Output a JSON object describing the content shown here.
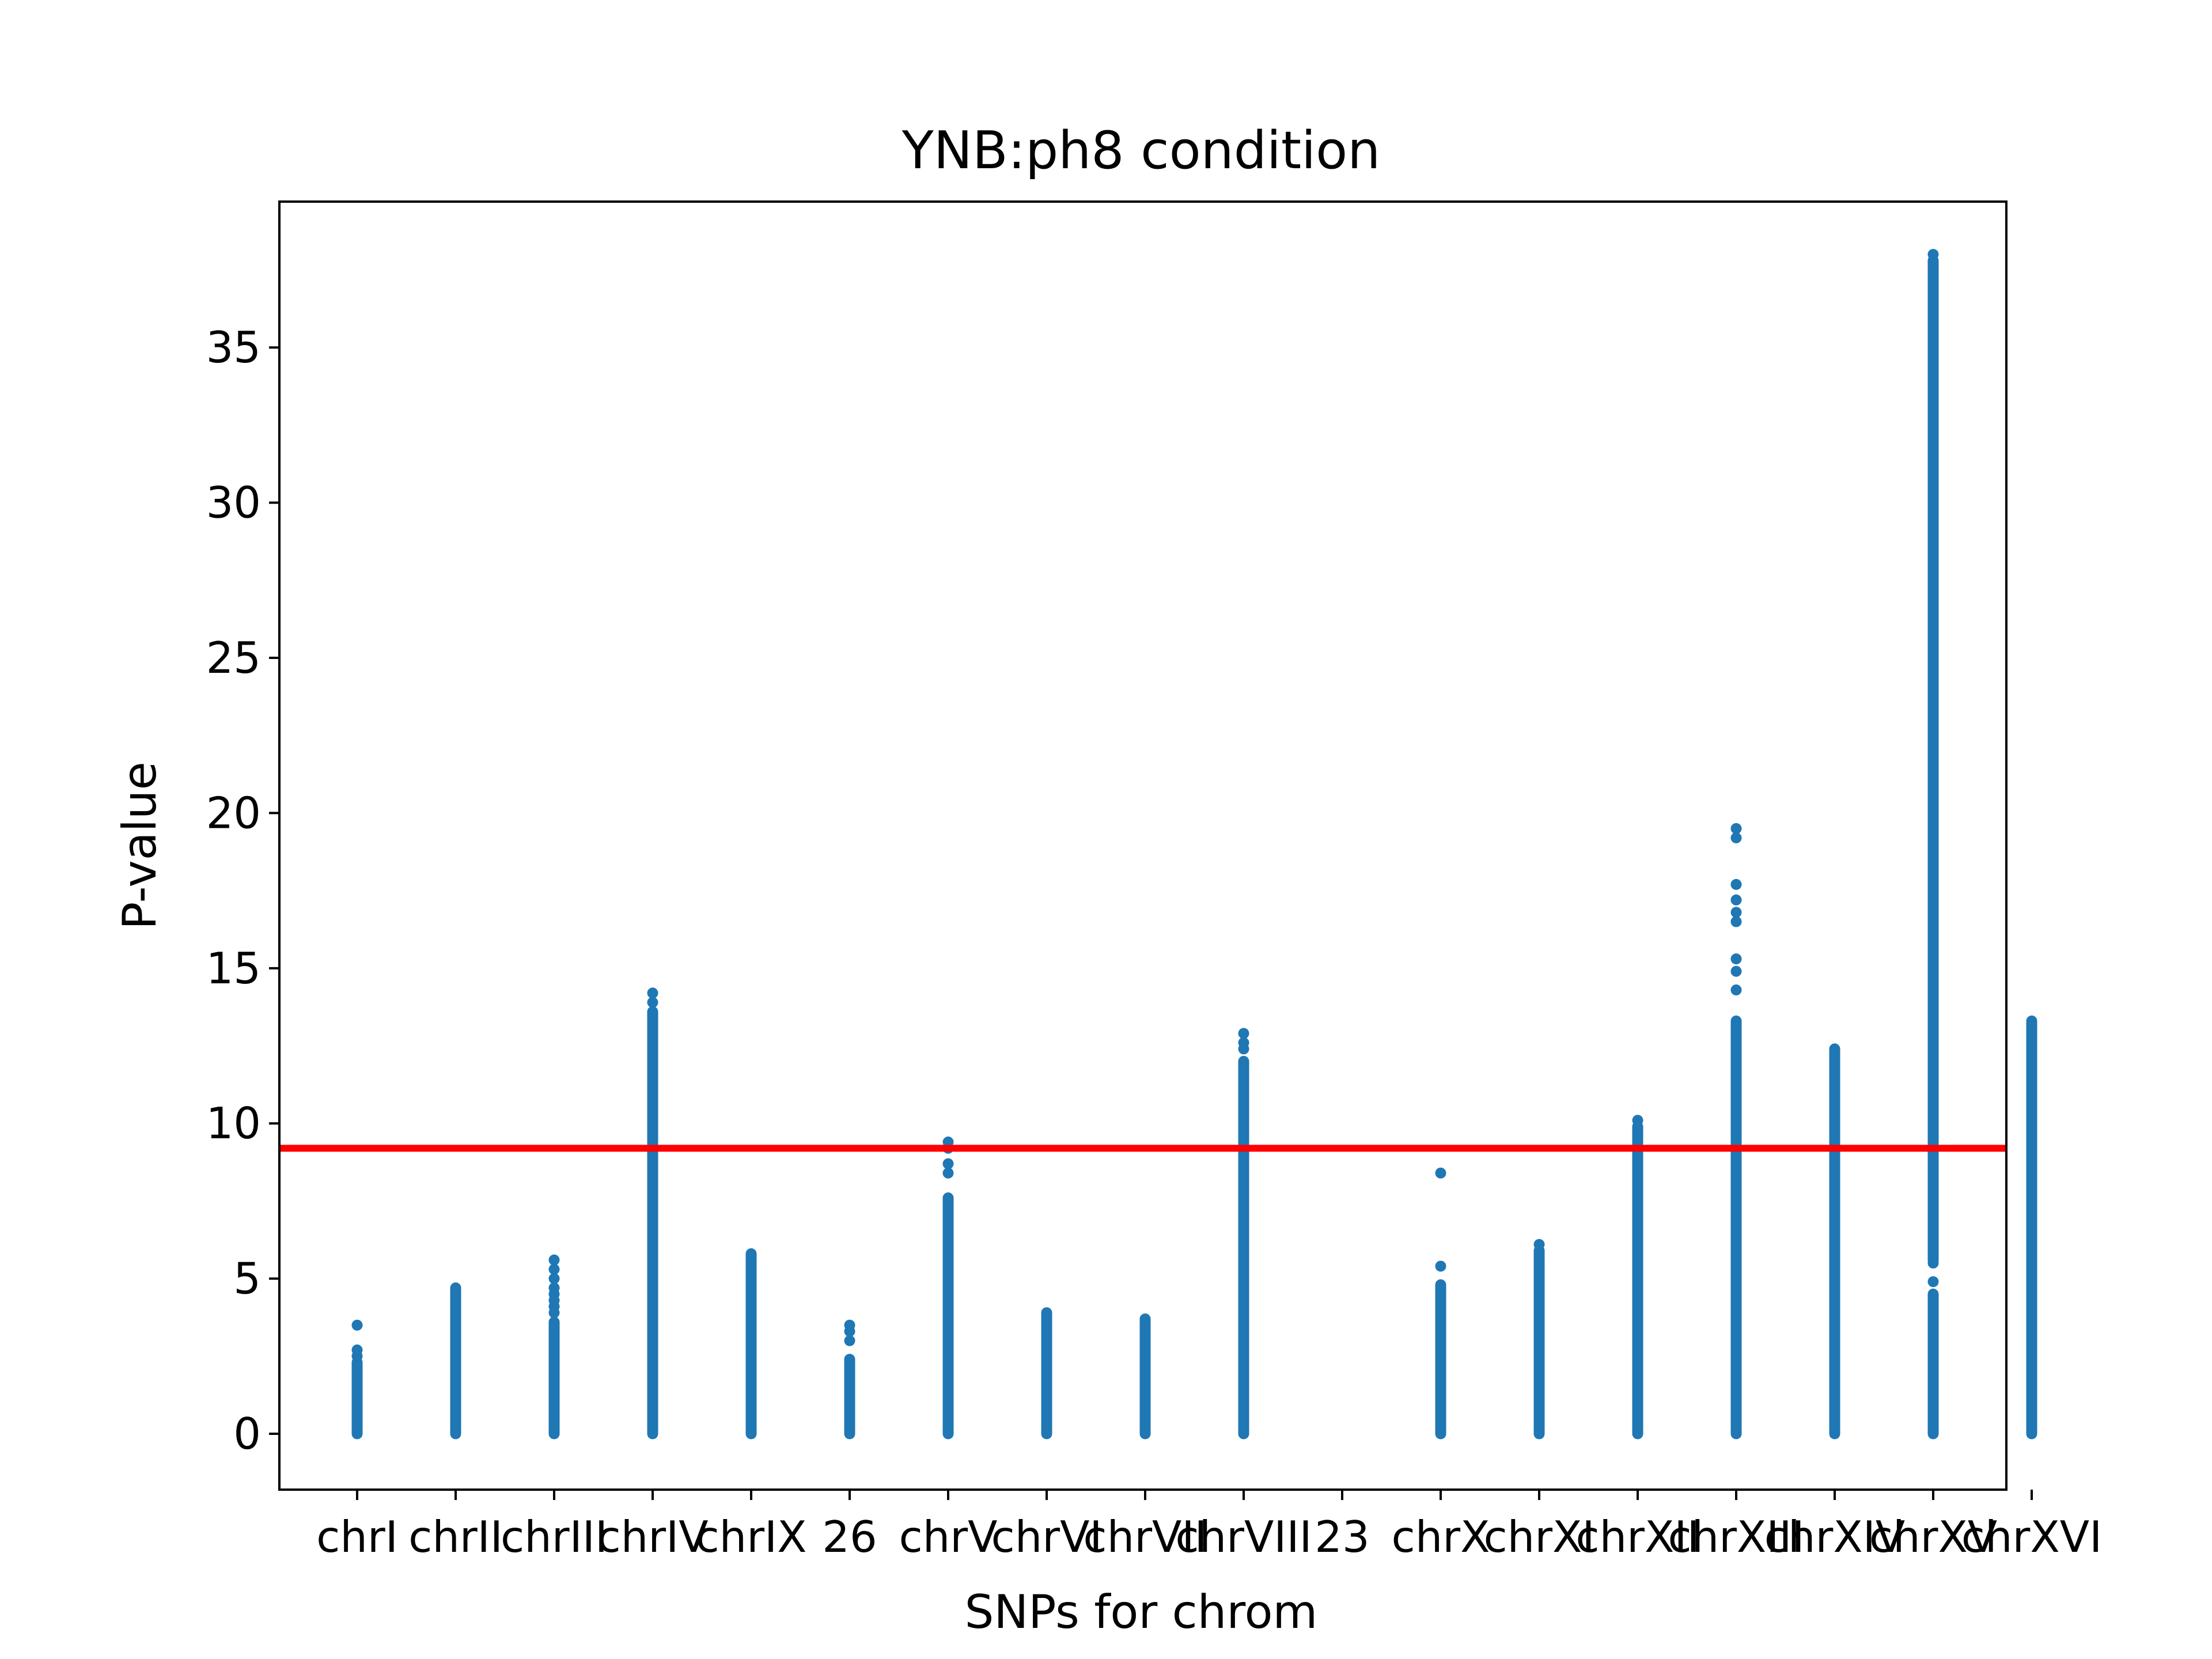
{
  "chart_data": {
    "type": "scatter",
    "title": "YNB:ph8 condition",
    "xlabel": "SNPs for chrom",
    "ylabel": "P-value",
    "ylim": [
      -1.8,
      39.7
    ],
    "yticks": [
      0,
      5,
      10,
      15,
      20,
      25,
      30,
      35
    ],
    "grid": false,
    "legend": "none",
    "point_color": "#1f77b4",
    "threshold": {
      "value": 9.2,
      "color": "#ff0000"
    },
    "categories": [
      "chrI",
      "chrII",
      "chrIII",
      "chrIV",
      "chrIX",
      "26",
      "chrV",
      "chrVI",
      "chrVII",
      "chrVIII",
      "23",
      "chrX",
      "chrXI",
      "chrXII",
      "chrXIII",
      "chrXIV",
      "chrXV",
      "chrXVI"
    ],
    "series": [
      {
        "category": "chrI",
        "range": [
          0,
          2.3
        ],
        "points": [
          2.5,
          2.7,
          3.5
        ]
      },
      {
        "category": "chrII",
        "range": [
          0,
          4.7
        ],
        "points": []
      },
      {
        "category": "chrIII",
        "range": [
          0,
          3.6
        ],
        "points": [
          3.9,
          4.1,
          4.3,
          4.5,
          4.7,
          5.0,
          5.3,
          5.6
        ]
      },
      {
        "category": "chrIV",
        "range": [
          0,
          13.6
        ],
        "points": [
          13.9,
          14.2
        ]
      },
      {
        "category": "chrIX",
        "range": [
          0,
          5.8
        ],
        "points": []
      },
      {
        "category": "26",
        "range": [
          0,
          2.4
        ],
        "points": [
          3.0,
          3.3,
          3.5
        ]
      },
      {
        "category": "chrV",
        "range": [
          0,
          7.6
        ],
        "points": [
          8.4,
          8.7,
          9.2,
          9.4
        ]
      },
      {
        "category": "chrVI",
        "range": [
          0,
          3.9
        ],
        "points": []
      },
      {
        "category": "chrVII",
        "range": [
          0,
          3.7
        ],
        "points": []
      },
      {
        "category": "chrVIII",
        "range": [
          0,
          12.0
        ],
        "points": [
          12.4,
          12.6,
          12.9
        ]
      },
      {
        "category": "chrX",
        "range": [
          0,
          4.8
        ],
        "points": [
          5.4,
          8.4
        ]
      },
      {
        "category": "chrXI",
        "range": [
          0,
          5.9
        ],
        "points": [
          6.1
        ]
      },
      {
        "category": "chrXII",
        "range": [
          0,
          9.9
        ],
        "points": [
          10.1
        ]
      },
      {
        "category": "chrXIII",
        "range": [
          0,
          13.3
        ],
        "points": [
          14.3,
          14.9,
          15.3,
          16.5,
          16.8,
          17.2,
          17.7,
          19.2,
          19.5
        ]
      },
      {
        "category": "chrXIV",
        "range": [
          0,
          12.4
        ],
        "points": []
      },
      {
        "category": "chrXV",
        "range": [
          0,
          4.5
        ],
        "points": [
          4.9,
          5.5,
          38.0
        ]
      },
      {
        "category": "chrXVI",
        "range": [
          0,
          13.3
        ],
        "points": []
      }
    ]
  }
}
